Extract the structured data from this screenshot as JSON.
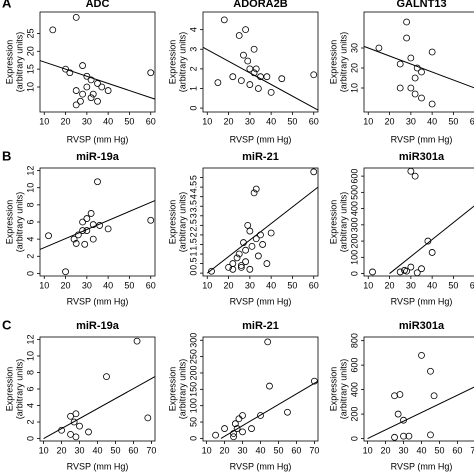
{
  "chart_data": [
    {
      "type": "scatter",
      "panel": "A",
      "title": "ADC",
      "x_label": "RVSP (mm Hg)",
      "y_label": [
        "Expression",
        "(arbitrary units)"
      ],
      "xlim": [
        8,
        62
      ],
      "xticks": [
        10,
        20,
        30,
        40,
        50,
        60
      ],
      "ylim": [
        3,
        31
      ],
      "yticks": [
        10,
        15,
        20,
        25
      ],
      "x": [
        14,
        25,
        22,
        28,
        30,
        32,
        25,
        28,
        30,
        35,
        27,
        32,
        33,
        35,
        37,
        40,
        25,
        60,
        20
      ],
      "values": [
        26,
        29.5,
        14,
        16,
        13,
        12,
        9,
        8,
        10,
        11,
        6,
        7,
        8,
        6,
        10,
        9,
        5,
        14,
        15
      ],
      "trend_x": [
        8,
        62
      ],
      "trend_y": [
        17.4,
        6.6
      ]
    },
    {
      "type": "scatter",
      "title": "ADORA2B",
      "x_label": "RVSP (mm Hg)",
      "y_label": [
        "Expression",
        "(arbitrary units)"
      ],
      "xlim": [
        8,
        62
      ],
      "xticks": [
        10,
        20,
        30,
        40,
        50,
        60
      ],
      "ylim": [
        -0.2,
        4.9
      ],
      "yticks": [
        0,
        1,
        2,
        3,
        4
      ],
      "x": [
        15,
        18,
        25,
        28,
        27,
        29,
        30,
        32,
        33,
        35,
        26,
        30,
        34,
        38,
        40,
        45,
        60,
        22,
        32
      ],
      "values": [
        1.3,
        4.5,
        3.7,
        4,
        2.7,
        2.4,
        2,
        1.8,
        2,
        1.6,
        1.4,
        1.2,
        1,
        1.6,
        0.8,
        1.5,
        1.7,
        1.6,
        3
      ],
      "trend_x": [
        8,
        62
      ],
      "trend_y": [
        3.1,
        -0.1
      ]
    },
    {
      "type": "scatter",
      "title": "GALNT13",
      "x_label": "RVSP (mm Hg)",
      "y_label": [
        "Expression",
        "(arbitrary units)"
      ],
      "xlim": [
        8,
        62
      ],
      "xticks": [
        10,
        20,
        30,
        40,
        50,
        60
      ],
      "ylim": [
        -2,
        48
      ],
      "yticks": [
        10,
        20,
        30
      ],
      "x": [
        15,
        25,
        28,
        30,
        33,
        32,
        35,
        30,
        35,
        40,
        40,
        32,
        28,
        25
      ],
      "values": [
        30,
        22,
        43,
        25,
        20,
        7,
        18,
        10,
        5,
        28,
        2,
        15,
        35,
        10
      ],
      "trend_x": [
        8,
        62
      ],
      "trend_y": [
        30.8,
        9.2
      ]
    },
    {
      "type": "scatter",
      "panel": "B",
      "title": "miR-19a",
      "x_label": "RVSP (mm Hg)",
      "y_label": [
        "Expression",
        "(arbitrary units)"
      ],
      "xlim": [
        8,
        62
      ],
      "xticks": [
        10,
        20,
        30,
        40,
        50,
        60
      ],
      "ylim": [
        -0.3,
        12.3
      ],
      "yticks": [
        0,
        2,
        4,
        6,
        8,
        10,
        12
      ],
      "x": [
        12,
        20,
        24,
        26,
        28,
        25,
        30,
        32,
        33,
        35,
        29,
        33,
        28,
        40,
        36,
        60,
        30
      ],
      "values": [
        4.4,
        0.2,
        4,
        4.5,
        5,
        3.5,
        6.4,
        7,
        5.7,
        10.7,
        3.4,
        4,
        6,
        5.2,
        5.6,
        6.2,
        5
      ],
      "trend_x": [
        8,
        62
      ],
      "trend_y": [
        2.8,
        8.5
      ]
    },
    {
      "type": "scatter",
      "title": "miR-21",
      "x_label": "RVSP (mm Hg)",
      "y_label": [
        "Expression",
        "(arbitrary units)"
      ],
      "xlim": [
        8,
        62
      ],
      "xticks": [
        10,
        20,
        30,
        40,
        50,
        60
      ],
      "ylim": [
        -0.15,
        5.5
      ],
      "yticks": [
        0,
        0.5,
        1,
        1.5,
        2,
        2.5,
        3,
        3.5,
        4,
        4.5,
        5
      ],
      "x": [
        12,
        20,
        22,
        24,
        25,
        26,
        27,
        28,
        28,
        30,
        30,
        31,
        32,
        33,
        33,
        34,
        35,
        36,
        38,
        40,
        22,
        26,
        29,
        60
      ],
      "values": [
        0.1,
        0.3,
        0.5,
        0.8,
        1,
        0.3,
        1.6,
        0.6,
        1.2,
        0.2,
        2.2,
        1.4,
        4.2,
        4.4,
        1.8,
        0.9,
        2,
        1.5,
        0.5,
        2.1,
        0.2,
        0.4,
        2.5,
        5.3
      ],
      "trend_x": [
        10,
        62
      ],
      "trend_y": [
        0,
        4.5
      ]
    },
    {
      "type": "scatter",
      "title": "miR301a",
      "x_label": "RVSP (mm Hg)",
      "y_label": [
        "Expression",
        "(arbitrary units)"
      ],
      "xlim": [
        8,
        62
      ],
      "xticks": [
        10,
        20,
        30,
        40,
        50,
        60
      ],
      "ylim": [
        -15,
        650
      ],
      "yticks": [
        0,
        100,
        200,
        300,
        400,
        500,
        600
      ],
      "x": [
        12,
        25,
        27,
        30,
        32,
        30,
        35,
        38,
        40,
        28,
        33
      ],
      "values": [
        10,
        10,
        20,
        630,
        600,
        40,
        30,
        200,
        130,
        15,
        5
      ],
      "trend_x": [
        20,
        62
      ],
      "trend_y": [
        0,
        440
      ]
    },
    {
      "type": "scatter",
      "panel": "C",
      "title": "miR-19a",
      "x_label": "RVSP (mm Hg)",
      "y_label": [
        "Expression",
        "(arbitrary units)"
      ],
      "xlim": [
        8,
        72
      ],
      "xticks": [
        10,
        20,
        30,
        40,
        50,
        60,
        70
      ],
      "ylim": [
        -0.3,
        12.3
      ],
      "yticks": [
        0,
        2,
        4,
        6,
        8,
        10,
        12
      ],
      "x": [
        20,
        25,
        27,
        28,
        30,
        35,
        45,
        62,
        68,
        25,
        28
      ],
      "values": [
        1,
        2.7,
        2,
        3,
        1.5,
        0.8,
        7.5,
        11.8,
        2.5,
        0.5,
        0.2
      ],
      "trend_x": [
        10,
        72
      ],
      "trend_y": [
        0,
        7.5
      ]
    },
    {
      "type": "scatter",
      "title": "miR-21",
      "x_label": "RVSP (mm Hg)",
      "y_label": [
        "Expression",
        "(arbitrary units)"
      ],
      "xlim": [
        8,
        72
      ],
      "xticks": [
        10,
        20,
        30,
        40,
        50,
        60,
        70
      ],
      "ylim": [
        -8,
        310
      ],
      "yticks": [
        0,
        50,
        100,
        150,
        200,
        250,
        300
      ],
      "x": [
        15,
        20,
        25,
        27,
        28,
        30,
        26,
        30,
        35,
        40,
        44,
        45,
        55,
        70,
        25
      ],
      "values": [
        10,
        30,
        15,
        30,
        60,
        70,
        45,
        20,
        30,
        70,
        295,
        160,
        80,
        175,
        5
      ],
      "trend_x": [
        18,
        72
      ],
      "trend_y": [
        0,
        175
      ]
    },
    {
      "type": "scatter",
      "title": "miR301a",
      "x_label": "RVSP (mm Hg)",
      "y_label": [
        "Expression",
        "(arbitrary units)"
      ],
      "xlim": [
        8,
        72
      ],
      "xticks": [
        10,
        20,
        30,
        40,
        50,
        60,
        70
      ],
      "ylim": [
        -20,
        830
      ],
      "yticks": [
        0,
        200,
        400,
        600,
        800
      ],
      "x": [
        25,
        27,
        28,
        30,
        30,
        33,
        40,
        45,
        45,
        47,
        25
      ],
      "values": [
        350,
        200,
        360,
        150,
        20,
        20,
        680,
        30,
        550,
        350,
        10
      ],
      "trend_x": [
        10,
        72
      ],
      "trend_y": [
        0,
        440
      ]
    }
  ]
}
